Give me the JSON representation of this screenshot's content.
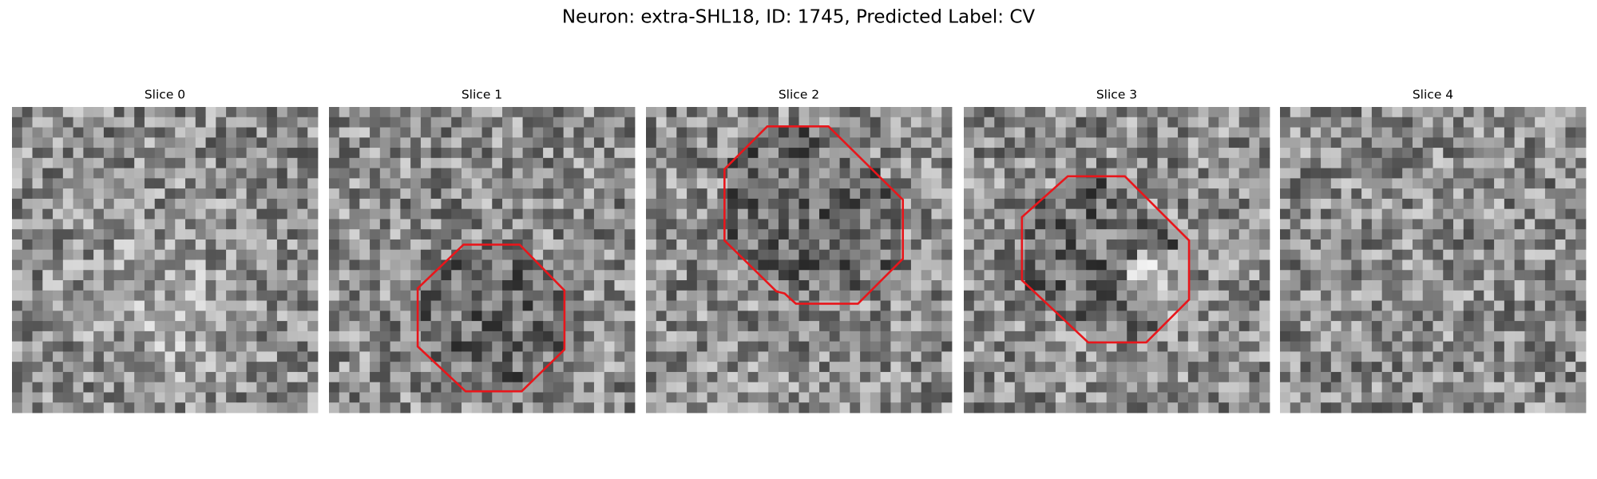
{
  "title": "Neuron: extra-SHL18, ID: 1745, Predicted Label: CV",
  "panels": [
    {
      "title": "Slice 0"
    },
    {
      "title": "Slice 1"
    },
    {
      "title": "Slice 2"
    },
    {
      "title": "Slice 3"
    },
    {
      "title": "Slice 4"
    }
  ]
}
